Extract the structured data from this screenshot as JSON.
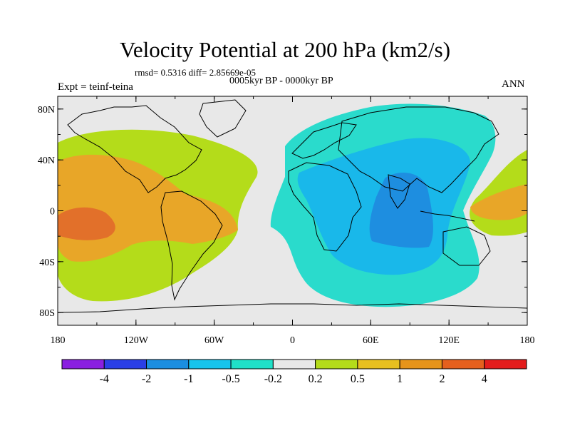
{
  "title": "Velocity Potential at 200 hPa (km2/s)",
  "stats": "rmsd= 0.5316 diff= 2.85669e-05",
  "subtitle": "0005kyr BP - 0000kyr BP",
  "left_label": "Expt = teinf-teina",
  "right_label": "ANN",
  "axes": {
    "y_ticks": [
      "80N",
      "40N",
      "0",
      "40S",
      "80S"
    ],
    "x_ticks": [
      "180",
      "120W",
      "60W",
      "0",
      "60E",
      "120E",
      "180"
    ]
  },
  "colorbar": {
    "labels": [
      "-4",
      "-2",
      "-1",
      "-0.5",
      "-0.2",
      "0.2",
      "0.5",
      "1",
      "2",
      "4"
    ],
    "colors": [
      "#8a1fe0",
      "#2a3fe6",
      "#1b8ee0",
      "#16c4ec",
      "#20e0c8",
      "#e8e8e8",
      "#b4dc1a",
      "#e8c020",
      "#e6941a",
      "#e5601e",
      "#e31c1c"
    ]
  },
  "colors": {
    "background": "#e8e8e8",
    "positive_weak": "#b4dc1a",
    "positive_mid": "#e8a628",
    "positive_strong": "#e2702a",
    "negative_weak": "#2adbcc",
    "negative_mid": "#19b8ea",
    "negative_strong": "#1e8ee0"
  }
}
